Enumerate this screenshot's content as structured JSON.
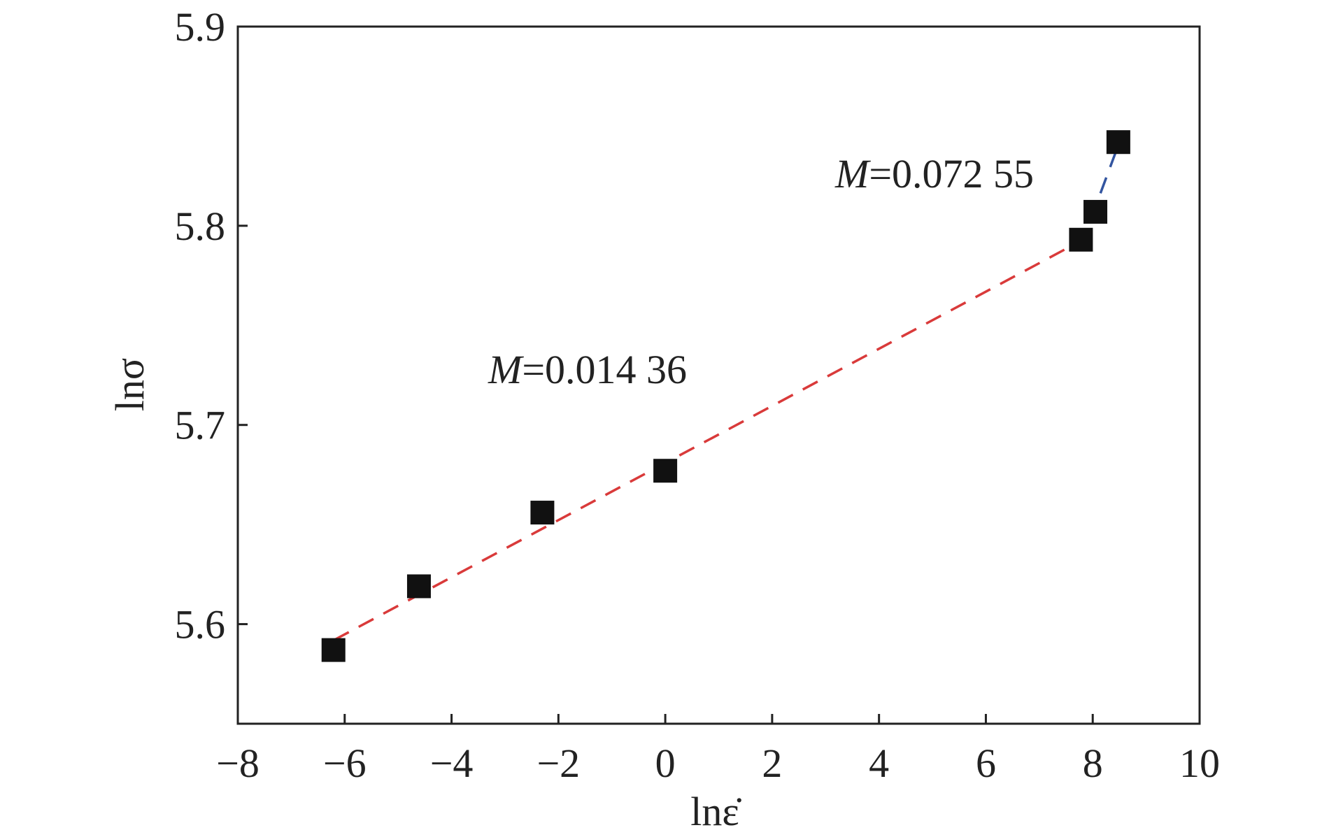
{
  "chart_data": {
    "type": "scatter",
    "xlabel": "lnε̇",
    "ylabel": "lnσ",
    "xlim": [
      -8,
      10
    ],
    "ylim": [
      5.55,
      5.9
    ],
    "xticks": [
      -8,
      -6,
      -4,
      -2,
      0,
      2,
      4,
      6,
      8,
      10
    ],
    "xtick_labels": [
      "−8",
      "−6",
      "−4",
      "−2",
      "0",
      "2",
      "4",
      "6",
      "8",
      "10"
    ],
    "yticks": [
      5.6,
      5.7,
      5.8,
      5.9
    ],
    "ytick_labels": [
      "5.6",
      "5.7",
      "5.8",
      "5.9"
    ],
    "grid": false,
    "series": [
      {
        "marker": "square",
        "color": "#111111",
        "x": [
          -6.21,
          -4.61,
          -2.3,
          0.0,
          7.78,
          8.05,
          8.48
        ],
        "y": [
          5.587,
          5.619,
          5.656,
          5.677,
          5.793,
          5.807,
          5.842
        ]
      }
    ],
    "fits": [
      {
        "slope_label": "0.014 36",
        "color": "#d93a3a",
        "style": "dashed",
        "x": [
          -6.2,
          7.75
        ],
        "y": [
          5.592,
          5.792
        ]
      },
      {
        "slope_label": "0.072 55",
        "color": "#3355a0",
        "style": "dashed",
        "x": [
          7.78,
          8.5
        ],
        "y": [
          5.79,
          5.842
        ]
      }
    ],
    "annotations": [
      {
        "italic": "M",
        "text": "=0.014 36"
      },
      {
        "italic": "M",
        "text": "=0.072 55"
      }
    ]
  }
}
